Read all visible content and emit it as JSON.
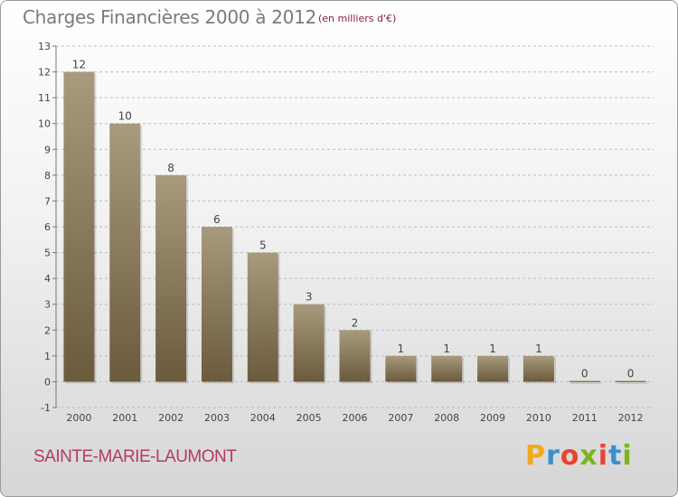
{
  "header": {
    "title": "Charges Financières 2000 à 2012",
    "unit": "(en milliers d'€)"
  },
  "footer": {
    "commune": "SAINTE-MARIE-LAUMONT",
    "brand": [
      "P",
      "r",
      "o",
      "x",
      "i",
      "t",
      "i"
    ],
    "brand_colors": [
      "#f2a81d",
      "#3b8fd1",
      "#e8452c",
      "#7ab51d",
      "#e8452c",
      "#3b8fd1",
      "#7ab51d"
    ]
  },
  "colors": {
    "bar_top": "#a89a7c",
    "bar_bottom": "#6b5a3c",
    "grid": "#bbbbbb"
  },
  "chart_data": {
    "type": "bar",
    "title": "Charges Financières 2000 à 2012",
    "subtitle": "(en milliers d'€)",
    "categories": [
      "2000",
      "2001",
      "2002",
      "2003",
      "2004",
      "2005",
      "2006",
      "2007",
      "2008",
      "2009",
      "2010",
      "2011",
      "2012"
    ],
    "values": [
      12,
      10,
      8,
      6,
      5,
      3,
      2,
      1,
      1,
      1,
      1,
      0,
      0
    ],
    "data_labels": [
      "12",
      "10",
      "8",
      "6",
      "5",
      "3",
      "2",
      "1",
      "1",
      "1",
      "1",
      "0",
      "0"
    ],
    "yticks": [
      "-1",
      "0",
      "1",
      "2",
      "3",
      "4",
      "5",
      "6",
      "7",
      "8",
      "9",
      "10",
      "11",
      "12",
      "13"
    ],
    "ylim": [
      -1,
      13
    ],
    "grid": true,
    "legend": "none"
  }
}
